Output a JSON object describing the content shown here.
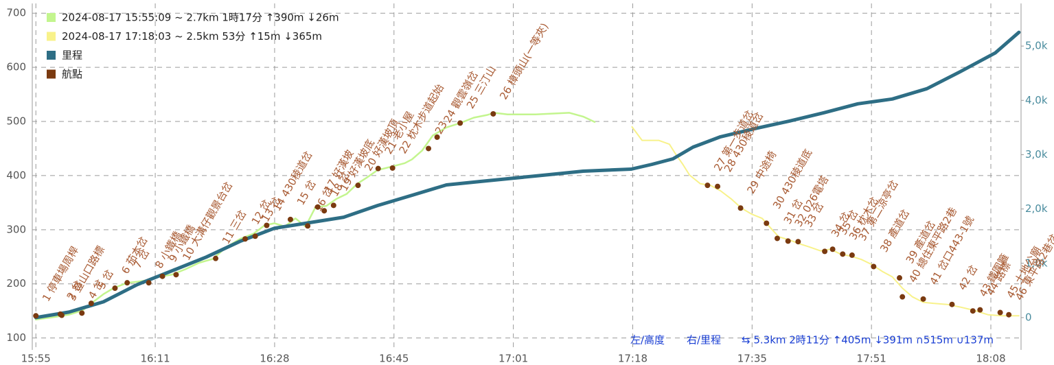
{
  "chart_data": {
    "type": "line",
    "xlim": [
      954.5,
      1092
    ],
    "xticks": [
      {
        "value": 955,
        "label": "15:55"
      },
      {
        "value": 971.6,
        "label": "16:11"
      },
      {
        "value": 988.2,
        "label": "16:28"
      },
      {
        "value": 1004.8,
        "label": "16:45"
      },
      {
        "value": 1021.4,
        "label": "17:01"
      },
      {
        "value": 1038,
        "label": "17:18"
      },
      {
        "value": 1054.6,
        "label": "17:35"
      },
      {
        "value": 1071.2,
        "label": "17:51"
      },
      {
        "value": 1087.8,
        "label": "18:08"
      }
    ],
    "ylim": [
      78,
      718
    ],
    "yticks": [
      100,
      200,
      300,
      400,
      500,
      600,
      700
    ],
    "y2lim": [
      -595,
      5785
    ],
    "y2ticks": [
      0,
      {
        "value": 1000,
        "label": "1,0k"
      },
      {
        "value": 2000,
        "label": "2,0k"
      },
      {
        "value": 3000,
        "label": "3,0k"
      },
      {
        "value": 4000,
        "label": "4,0k"
      },
      {
        "value": 5000,
        "label": "5,0k"
      }
    ],
    "grid": true,
    "legend": "top-left",
    "series": [
      {
        "name": "2024-08-17 15:55:09 ~ 2.7km 1時17分 ↑390m ↓26m",
        "color": "#c3f58e",
        "x": [
          955.0,
          957.7,
          959.6,
          961.5,
          962.9,
          964.4,
          965.8,
          967.7,
          969.1,
          970.6,
          972.0,
          973.9,
          975.8,
          977.7,
          979.6,
          981.5,
          983.4,
          985.3,
          986.8,
          988.2,
          989.6,
          991.1,
          992.5,
          993.9,
          995.4,
          996.8,
          998.2,
          999.7,
          1001.1,
          1002.5,
          1004.9,
          1006.3,
          1007.3,
          1008.7,
          1010.2,
          1012.1,
          1014.0,
          1015.9,
          1017.8,
          1018.7,
          1020.6,
          1024.5,
          1029.2,
          1031.1,
          1032.7
        ],
        "values": [
          134,
          139,
          143,
          151,
          166,
          181,
          192,
          202,
          204,
          207,
          213,
          217,
          227,
          239,
          246,
          268,
          283,
          293,
          308,
          312,
          306,
          321,
          306,
          342,
          344,
          357,
          366,
          385,
          397,
          410,
          418,
          423,
          430,
          446,
          474,
          489,
          497,
          507,
          512,
          516,
          513,
          513,
          516,
          509,
          499
        ]
      },
      {
        "name": "2024-08-17 17:18:03 ~ 2.5km 53分 ↑15m ↓365m",
        "color": "#f8f28a",
        "x": [
          1037.9,
          1039.3,
          1041.6,
          1043.1,
          1044.0,
          1045.0,
          1045.9,
          1047.4,
          1048.8,
          1050.2,
          1051.7,
          1053.1,
          1054.5,
          1056.0,
          1057.4,
          1058.3,
          1059.8,
          1061.2,
          1062.6,
          1064.1,
          1065.5,
          1066.9,
          1068.4,
          1069.8,
          1071.2,
          1072.7,
          1074.1,
          1075.5,
          1076.9,
          1078.4,
          1079.8,
          1081.7,
          1083.6,
          1085.5,
          1087.4,
          1089.4,
          1091.7
        ],
        "values": [
          490,
          465,
          465,
          458,
          439,
          420,
          401,
          385,
          382,
          372,
          357,
          340,
          329,
          321,
          300,
          287,
          281,
          274,
          268,
          261,
          264,
          255,
          251,
          245,
          236,
          223,
          213,
          192,
          176,
          166,
          164,
          162,
          157,
          151,
          143,
          141,
          141
        ]
      },
      {
        "name": "里程",
        "color": "#2e6e85",
        "axis": "y2",
        "x": [
          955.0,
          959.6,
          964.4,
          969.1,
          973.9,
          978.7,
          983.4,
          988.2,
          993.0,
          997.8,
          1002.5,
          1007.3,
          1012.1,
          1016.8,
          1021.6,
          1026.4,
          1031.1,
          1037.8,
          1040.7,
          1043.6,
          1046.4,
          1050.2,
          1055.0,
          1059.8,
          1064.6,
          1069.3,
          1074.1,
          1078.9,
          1083.6,
          1088.4,
          1091.7
        ],
        "values": [
          0,
          101,
          291,
          608,
          861,
          1114,
          1405,
          1646,
          1747,
          1848,
          2063,
          2253,
          2443,
          2506,
          2570,
          2633,
          2696,
          2734,
          2823,
          2924,
          3139,
          3329,
          3481,
          3620,
          3772,
          3937,
          4025,
          4215,
          4532,
          4873,
          5253
        ]
      },
      {
        "name": "航點",
        "color": "#7a3a10",
        "type": "scatter",
        "x": [
          955.0,
          958.4,
          958.6,
          961.4,
          962.7,
          966.0,
          967.7,
          970.7,
          972.6,
          974.5,
          980.0,
          984.1,
          985.5,
          987.1,
          990.4,
          992.8,
          994.2,
          995.1,
          996.4,
          999.8,
          1002.6,
          1004.6,
          1009.6,
          1010.8,
          1014.0,
          1018.6,
          1048.4,
          1049.8,
          1053.0,
          1056.6,
          1058.1,
          1059.6,
          1061.0,
          1064.7,
          1065.8,
          1067.2,
          1068.5,
          1071.5,
          1075.1,
          1075.5,
          1078.4,
          1082.4,
          1085.3,
          1086.3,
          1089.1,
          1090.3
        ],
        "values": [
          141,
          144,
          142,
          146,
          164,
          192,
          202,
          202,
          214,
          217,
          247,
          283,
          288,
          308,
          319,
          307,
          342,
          335,
          345,
          382,
          413,
          414,
          450,
          471,
          497,
          514,
          382,
          380,
          340,
          312,
          284,
          279,
          278,
          260,
          264,
          255,
          253,
          232,
          211,
          176,
          172,
          162,
          150,
          152,
          147,
          143
        ],
        "labels": [
          "1 停車場周桿",
          "2 岔",
          "3 登山口路標",
          "4 岔",
          "5 岔",
          "6 茄本岔",
          "7 岔",
          "8 小鐵橋",
          "9 小鐵橋",
          "10 大溝仔觀景台岔",
          "11 三岔",
          "12 岔",
          "13 岔",
          "14 430稜道岔",
          "15 岔",
          "16 岔",
          "17 好漢坡",
          "18 岔",
          "19 好漢坡底",
          "20 好漢坡頂",
          "21 老小屋",
          "22 枕木步道起始",
          "23",
          "24 觀雲嶺岔",
          "25 三汀山",
          "26 樟頭山(一等夾)",
          "27 第一步道岔",
          "28 430稜道岔",
          "29 中途椅",
          "30 430稜道底",
          "31 岔",
          "32 026電塔",
          "33 岔",
          "34 岔",
          "35 岔",
          "36 枕木岔",
          "37 第二涼亭岔",
          "38 產道岔",
          "39 產道岔",
          "40 總住東平路2巷",
          "41 岔口443-1號",
          "42 岔",
          "43 鐵圍籬",
          "44 路標",
          "45 土地公廟",
          "46 東平路2巷岔"
        ]
      }
    ],
    "annotations": [
      "左/高度",
      "右/里程",
      "⇆ 5.3km 2時11分 ↑405m ↓391m ∩515m ∪137m"
    ]
  }
}
